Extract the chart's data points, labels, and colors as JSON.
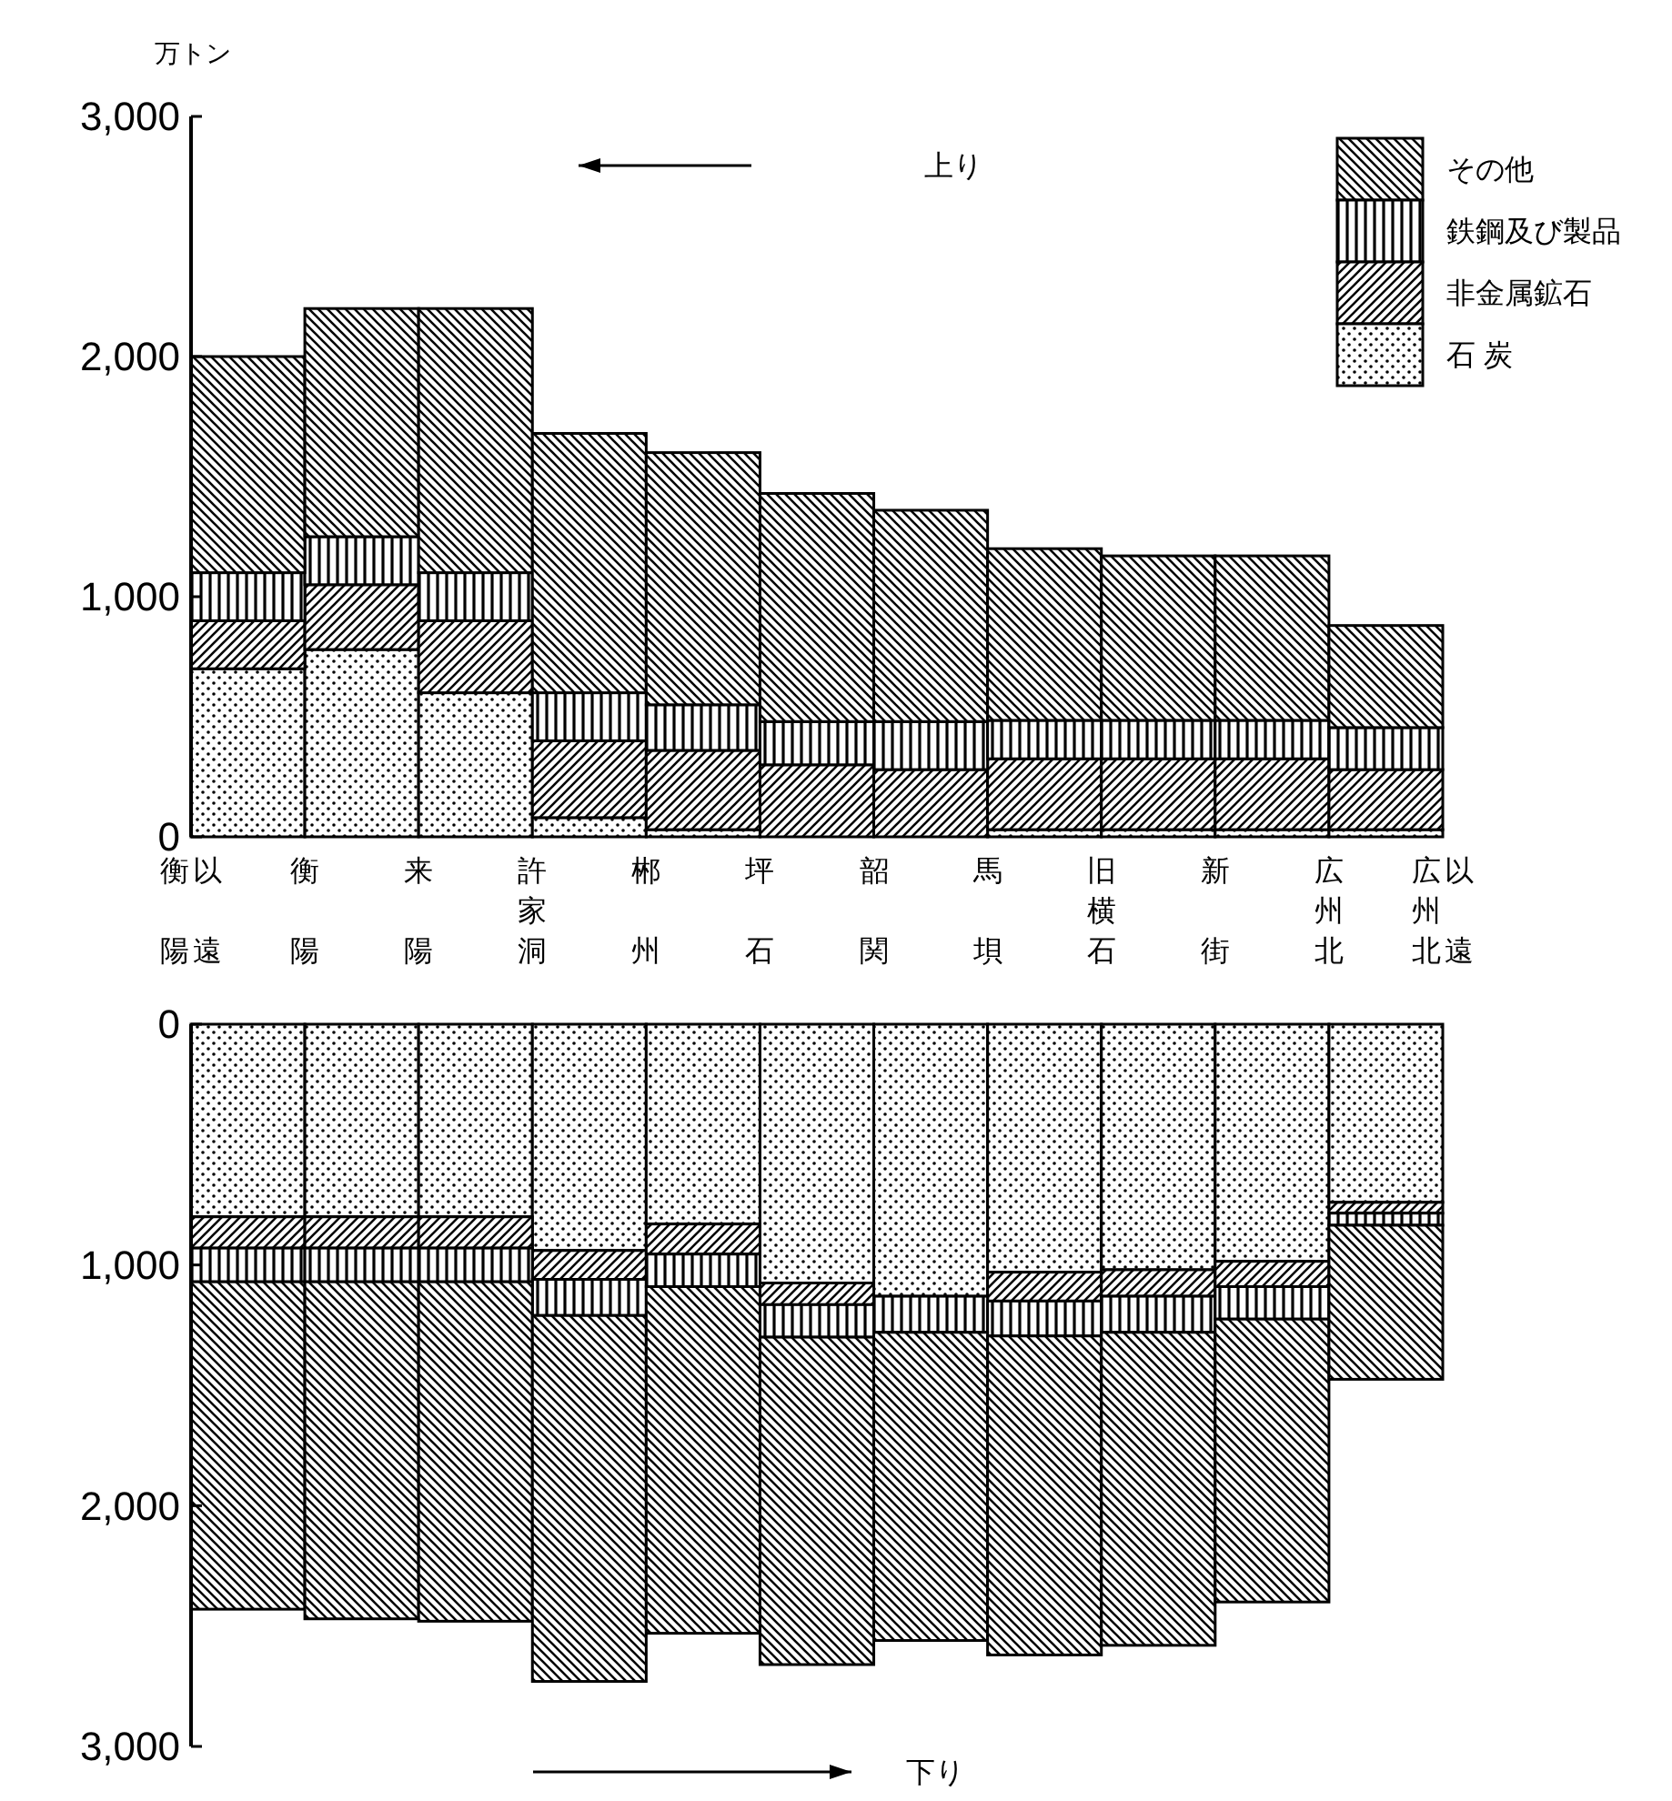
{
  "chart_data": [
    {
      "type": "bar",
      "stacked": true,
      "ylabel": "万トン",
      "categories": [
        "衡陽以遠",
        "衡陽",
        "来陽",
        "許家洞",
        "郴州",
        "坪石",
        "韶関",
        "馬垻",
        "旧横石",
        "新街",
        "広州北",
        "広州北以遠"
      ],
      "ylim": [
        0,
        3000
      ],
      "yticks": [
        {
          "value": 0,
          "label": "0"
        },
        {
          "value": 1000,
          "label": "1,000"
        },
        {
          "value": 2000,
          "label": "2,000"
        },
        {
          "value": 3000,
          "label": "3,000"
        }
      ],
      "legend": "top right",
      "annotations": [
        "上り"
      ],
      "series": [
        {
          "name": "石 炭",
          "color": "#000000",
          "values": [
            700,
            780,
            600,
            80,
            30,
            0,
            0,
            30,
            30,
            30,
            30,
            null
          ]
        },
        {
          "name": "非金属鉱石",
          "color": "#000000",
          "values": [
            200,
            270,
            300,
            320,
            330,
            300,
            280,
            295,
            295,
            295,
            250,
            null
          ]
        },
        {
          "name": "鉄鋼及び製品",
          "color": "#000000",
          "values": [
            200,
            200,
            200,
            200,
            190,
            180,
            200,
            160,
            160,
            160,
            175,
            null
          ]
        },
        {
          "name": "その他",
          "color": "#000000",
          "values": [
            900,
            950,
            1100,
            1080,
            1050,
            950,
            880,
            715,
            685,
            685,
            425,
            null
          ]
        }
      ]
    },
    {
      "type": "bar",
      "stacked": true,
      "categories": [
        null,
        null,
        null,
        null,
        null,
        null,
        null,
        null,
        null,
        null,
        null,
        null
      ],
      "ylim": [
        3000,
        0
      ],
      "yticks": [
        {
          "value": 0,
          "label": "0"
        },
        {
          "value": 1000,
          "label": "1,000"
        },
        {
          "value": 2000,
          "label": "2,000"
        },
        {
          "value": 3000,
          "label": "3,000"
        }
      ],
      "tick_labels": "y",
      "annotations": [
        "下り"
      ],
      "series": [
        {
          "color": "#000000",
          "values": [
            800,
            800,
            800,
            940,
            830,
            1075,
            1130,
            1030,
            1020,
            985,
            740,
            null
          ]
        },
        {
          "color": "#000000",
          "values": [
            130,
            130,
            130,
            120,
            125,
            90,
            0,
            120,
            110,
            105,
            45,
            null
          ]
        },
        {
          "color": "#000000",
          "values": [
            140,
            140,
            140,
            150,
            135,
            135,
            150,
            145,
            150,
            135,
            50,
            null
          ]
        },
        {
          "color": "#000000",
          "values": [
            1360,
            1400,
            1410,
            1520,
            1440,
            1360,
            1280,
            1325,
            1300,
            1175,
            640,
            null
          ]
        }
      ]
    }
  ]
}
